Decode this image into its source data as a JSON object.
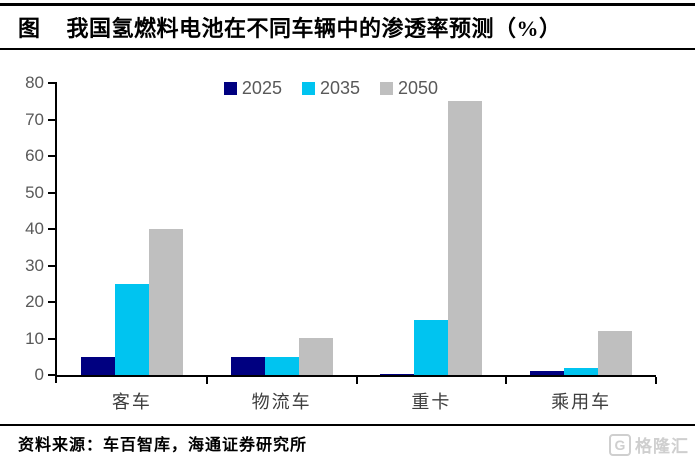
{
  "header": {
    "tag": "图",
    "title": "我国氢燃料电池在不同车辆中的渗透率预测（%）"
  },
  "chart_data": {
    "type": "bar",
    "categories": [
      "客车",
      "物流车",
      "重卡",
      "乘用车"
    ],
    "series": [
      {
        "name": "2025",
        "color": "#000080",
        "values": [
          5,
          5,
          0.3,
          1
        ]
      },
      {
        "name": "2035",
        "color": "#00C4F0",
        "values": [
          25,
          5,
          15,
          2
        ]
      },
      {
        "name": "2050",
        "color": "#BFBFBF",
        "values": [
          40,
          10,
          75,
          12
        ]
      }
    ],
    "title": "我国氢燃料电池在不同车辆中的渗透率预测（%）",
    "xlabel": "",
    "ylabel": "",
    "ylim": [
      0,
      80
    ],
    "yticks": [
      0,
      10,
      20,
      30,
      40,
      50,
      60,
      70,
      80
    ],
    "grid": false,
    "legend_position": "top-center"
  },
  "footer": {
    "source": "资料来源：车百智库，海通证券研究所"
  },
  "watermark": {
    "initial": "G",
    "text": "格隆汇"
  }
}
